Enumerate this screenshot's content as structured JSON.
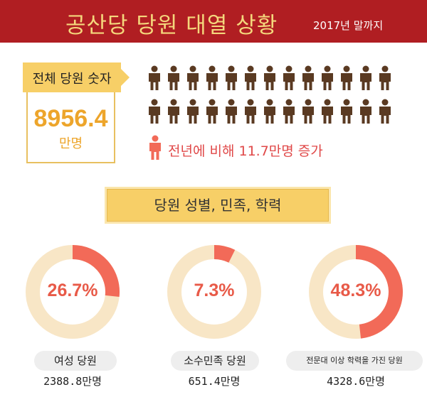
{
  "header": {
    "title": "공산당 당원 대열 상황",
    "subtitle": "2017년 말까지"
  },
  "total": {
    "label": "전체 당원 숫자",
    "value": "8956.4",
    "unit": "만명"
  },
  "increase_text": "전년에 비해 11.7만명 증가",
  "section_title": "당원 성별, 민족, 학력",
  "colors": {
    "header_bg": "#b01e22",
    "header_title": "#f4d77c",
    "accent_yellow": "#f7cf67",
    "gold_text": "#eda52b",
    "person_brown": "#5a3a22",
    "ring_track": "#f8e6c6",
    "ring_fill": "#f26a58",
    "increase_red": "#e04848"
  },
  "icons": {
    "person": "person-icon",
    "person_highlight": "person-highlight-icon"
  },
  "chart_data": {
    "type": "pie",
    "categories": [
      "여성 당원",
      "소수민족 당원",
      "전문대 이상 학력을 가진 당원"
    ],
    "values": [
      26.7,
      7.3,
      48.3
    ],
    "labels": [
      "26.7%",
      "7.3%",
      "48.3%"
    ],
    "counts": [
      "2388.8만명",
      "651.4만명",
      "4328.6만명"
    ]
  }
}
